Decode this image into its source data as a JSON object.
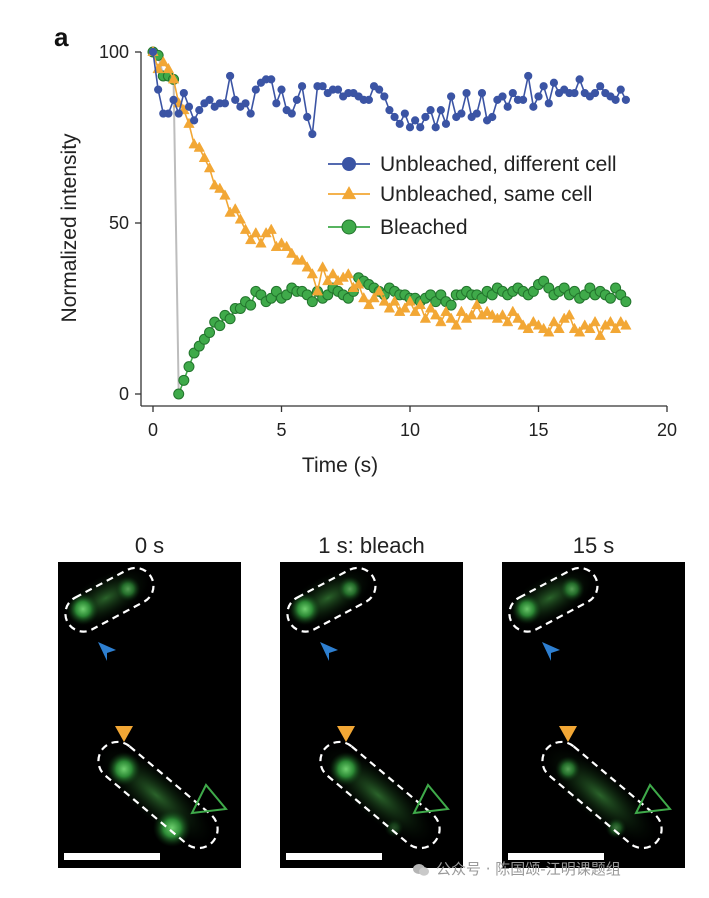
{
  "panel_label": "a",
  "chart_data": {
    "type": "line",
    "xlabel": "Time (s)",
    "ylabel": "Normalized intensity",
    "xlim": [
      0,
      20
    ],
    "ylim": [
      0,
      100
    ],
    "xticks": [
      0,
      5,
      10,
      15,
      20
    ],
    "yticks": [
      0,
      50,
      100
    ],
    "legend_position": "center-right",
    "series": [
      {
        "name": "Unbleached, different cell",
        "marker": "circle",
        "color": "#3b54a4",
        "x": [
          0.0,
          0.2,
          0.4,
          0.6,
          0.8,
          1.0,
          1.2,
          1.4,
          1.6,
          1.8,
          2.0,
          2.2,
          2.4,
          2.6,
          2.8,
          3.0,
          3.2,
          3.4,
          3.6,
          3.8,
          4.0,
          4.2,
          4.4,
          4.6,
          4.8,
          5.0,
          5.2,
          5.4,
          5.6,
          5.8,
          6.0,
          6.2,
          6.4,
          6.6,
          6.8,
          7.0,
          7.2,
          7.4,
          7.6,
          7.8,
          8.0,
          8.2,
          8.4,
          8.6,
          8.8,
          9.0,
          9.2,
          9.4,
          9.6,
          9.8,
          10.0,
          10.2,
          10.4,
          10.6,
          10.8,
          11.0,
          11.2,
          11.4,
          11.6,
          11.8,
          12.0,
          12.2,
          12.4,
          12.6,
          12.8,
          13.0,
          13.2,
          13.4,
          13.6,
          13.8,
          14.0,
          14.2,
          14.4,
          14.6,
          14.8,
          15.0,
          15.2,
          15.4,
          15.6,
          15.8,
          16.0,
          16.2,
          16.4,
          16.6,
          16.8,
          17.0,
          17.2,
          17.4,
          17.6,
          17.8,
          18.0,
          18.2,
          18.4
        ],
        "y": [
          100,
          89,
          82,
          82,
          86,
          82,
          88,
          84,
          80,
          83,
          85,
          86,
          84,
          85,
          85,
          93,
          86,
          84,
          85,
          82,
          89,
          91,
          92,
          92,
          85,
          89,
          83,
          82,
          86,
          90,
          81,
          76,
          90,
          90,
          88,
          89,
          89,
          87,
          88,
          88,
          87,
          86,
          86,
          90,
          89,
          87,
          83,
          81,
          79,
          82,
          78,
          80,
          78,
          81,
          83,
          78,
          83,
          79,
          87,
          81,
          82,
          88,
          81,
          82,
          88,
          80,
          81,
          86,
          87,
          84,
          88,
          86,
          86,
          93,
          84,
          87,
          90,
          85,
          91,
          88,
          89,
          88,
          88,
          92,
          88,
          87,
          88,
          90,
          88,
          87,
          86,
          89,
          86
        ]
      },
      {
        "name": "Unbleached, same cell",
        "marker": "triangle",
        "color": "#f2a735",
        "x": [
          0.0,
          0.2,
          0.4,
          0.6,
          0.8,
          1.0,
          1.2,
          1.4,
          1.6,
          1.8,
          2.0,
          2.2,
          2.4,
          2.6,
          2.8,
          3.0,
          3.2,
          3.4,
          3.6,
          3.8,
          4.0,
          4.2,
          4.4,
          4.6,
          4.8,
          5.0,
          5.2,
          5.4,
          5.6,
          5.8,
          6.0,
          6.2,
          6.4,
          6.6,
          6.8,
          7.0,
          7.2,
          7.4,
          7.6,
          7.8,
          8.0,
          8.2,
          8.4,
          8.6,
          8.8,
          9.0,
          9.2,
          9.4,
          9.6,
          9.8,
          10.0,
          10.2,
          10.4,
          10.6,
          10.8,
          11.0,
          11.2,
          11.4,
          11.6,
          11.8,
          12.0,
          12.2,
          12.4,
          12.6,
          12.8,
          13.0,
          13.2,
          13.4,
          13.6,
          13.8,
          14.0,
          14.2,
          14.4,
          14.6,
          14.8,
          15.0,
          15.2,
          15.4,
          15.6,
          15.8,
          16.0,
          16.2,
          16.4,
          16.6,
          16.8,
          17.0,
          17.2,
          17.4,
          17.6,
          17.8,
          18.0,
          18.2,
          18.4
        ],
        "y": [
          100,
          95,
          97,
          95,
          92,
          85,
          83,
          79,
          73,
          72,
          69,
          66,
          61,
          60,
          58,
          53,
          54,
          51,
          48,
          45,
          47,
          44,
          47,
          48,
          43,
          44,
          43,
          41,
          39,
          39,
          37,
          35,
          30,
          37,
          33,
          35,
          33,
          34,
          35,
          31,
          32,
          28,
          26,
          28,
          30,
          27,
          25,
          27,
          24,
          25,
          27,
          24,
          26,
          22,
          25,
          23,
          21,
          24,
          22,
          20,
          24,
          22,
          23,
          26,
          23,
          24,
          23,
          22,
          23,
          21,
          24,
          22,
          20,
          19,
          21,
          20,
          19,
          18,
          21,
          19,
          22,
          23,
          19,
          18,
          20,
          19,
          21,
          17,
          20,
          21,
          19,
          21,
          20
        ]
      },
      {
        "name": "Bleached",
        "marker": "circle",
        "color": "#3faa4a",
        "x": [
          0.0,
          0.2,
          0.4,
          0.6,
          0.8,
          1.0,
          1.2,
          1.4,
          1.6,
          1.8,
          2.0,
          2.2,
          2.4,
          2.6,
          2.8,
          3.0,
          3.2,
          3.4,
          3.6,
          3.8,
          4.0,
          4.2,
          4.4,
          4.6,
          4.8,
          5.0,
          5.2,
          5.4,
          5.6,
          5.8,
          6.0,
          6.2,
          6.4,
          6.6,
          6.8,
          7.0,
          7.2,
          7.4,
          7.6,
          7.8,
          8.0,
          8.2,
          8.4,
          8.6,
          8.8,
          9.0,
          9.2,
          9.4,
          9.6,
          9.8,
          10.0,
          10.2,
          10.4,
          10.6,
          10.8,
          11.0,
          11.2,
          11.4,
          11.6,
          11.8,
          12.0,
          12.2,
          12.4,
          12.6,
          12.8,
          13.0,
          13.2,
          13.4,
          13.6,
          13.8,
          14.0,
          14.2,
          14.4,
          14.6,
          14.8,
          15.0,
          15.2,
          15.4,
          15.6,
          15.8,
          16.0,
          16.2,
          16.4,
          16.6,
          16.8,
          17.0,
          17.2,
          17.4,
          17.6,
          17.8,
          18.0,
          18.2,
          18.4
        ],
        "y": [
          100,
          99,
          93,
          93,
          92,
          0,
          4,
          8,
          12,
          14,
          16,
          18,
          21,
          20,
          23,
          22,
          25,
          25,
          27,
          26,
          30,
          29,
          27,
          28,
          30,
          28,
          29,
          31,
          30,
          30,
          29,
          27,
          30,
          28,
          29,
          31,
          30,
          29,
          28,
          30,
          34,
          33,
          32,
          31,
          30,
          29,
          31,
          30,
          29,
          29,
          28,
          28,
          27,
          28,
          29,
          27,
          29,
          27,
          26,
          29,
          29,
          30,
          29,
          29,
          28,
          30,
          29,
          31,
          30,
          29,
          30,
          31,
          30,
          29,
          30,
          32,
          33,
          31,
          29,
          30,
          31,
          29,
          30,
          28,
          29,
          31,
          29,
          30,
          29,
          28,
          31,
          29,
          27
        ]
      }
    ],
    "bleach_drop": {
      "color": "#bdbdbd",
      "x": [
        0.0,
        0.2,
        0.4,
        0.6,
        0.8,
        1.0
      ],
      "y": [
        100,
        99,
        93,
        93,
        92,
        0
      ]
    }
  },
  "micrographs": [
    {
      "title": "0 s"
    },
    {
      "title": "1 s: bleach"
    },
    {
      "title": "15 s"
    }
  ],
  "watermark": "公众号 · 陈国颂-江明课题组"
}
